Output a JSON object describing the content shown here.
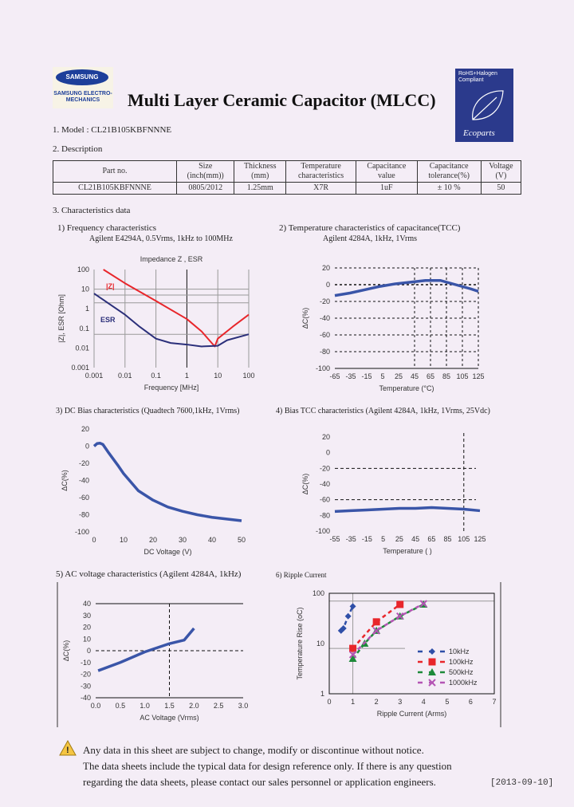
{
  "header": {
    "logo_text": "SAMSUNG",
    "logo_sub": "SAMSUNG ELECTRO-MECHANICS",
    "title": "Multi Layer Ceramic Capacitor (MLCC)",
    "badge_text": "RoHS+Halogen Compliant",
    "badge_brand": "Ecoparts"
  },
  "model": "1. Model : CL21B105KBFNNNE",
  "description_heading": "2. Description",
  "table": {
    "headers": [
      [
        "Part no.",
        ""
      ],
      [
        "Size",
        "(inch(mm))"
      ],
      [
        "Thickness",
        "(mm)"
      ],
      [
        "Temperature",
        "characteristics"
      ],
      [
        "Capacitance",
        "value"
      ],
      [
        "Capacitance",
        "tolerance(%)"
      ],
      [
        "Voltage",
        "(V)"
      ]
    ],
    "row": [
      "CL21B105KBFNNNE",
      "0805/2012",
      "1.25mm",
      "X7R",
      "1uF",
      "± 10 %",
      "50"
    ]
  },
  "characteristics_heading": "3. Characteristics data",
  "chart_data": [
    {
      "id": "c1",
      "type": "line",
      "heading": "1) Frequency characteristics",
      "subheading": "Agilent E4294A, 0.5Vrms, 1kHz to 100MHz",
      "title": "Impedance  Z , ESR",
      "xlabel": "Frequency [MHz]",
      "ylabel": "|Z|, ESR [Ohm]",
      "xscale": "log",
      "yscale": "log",
      "xlim": [
        0.001,
        100
      ],
      "ylim": [
        0.001,
        100
      ],
      "xticks": [
        "0.001",
        "0.01",
        "0.1",
        "1",
        "10",
        "100"
      ],
      "yticks": [
        "0.001",
        "0.01",
        "0.1",
        "1",
        "10",
        "100"
      ],
      "grid": true,
      "series": [
        {
          "name": "|Z|",
          "color": "#e8262b",
          "x": [
            0.002,
            0.01,
            0.1,
            1,
            3,
            6,
            8,
            10,
            30,
            100
          ],
          "y": [
            100,
            20,
            2.5,
            0.3,
            0.07,
            0.02,
            0.012,
            0.03,
            0.12,
            0.5
          ]
        },
        {
          "name": "ESR",
          "color": "#2b2f7a",
          "x": [
            0.001,
            0.01,
            0.03,
            0.1,
            0.3,
            1,
            3,
            10,
            20,
            100
          ],
          "y": [
            6,
            0.5,
            0.12,
            0.03,
            0.018,
            0.015,
            0.012,
            0.013,
            0.025,
            0.05
          ]
        }
      ]
    },
    {
      "id": "c2",
      "type": "line",
      "heading": "2) Temperature characteristics of capacitance(TCC)",
      "subheading": "Agilent 4284A, 1kHz, 1Vrms",
      "xlabel": "Temperature (°C)",
      "ylabel": "ΔC(%)",
      "xlim": [
        -65,
        125
      ],
      "ylim": [
        -100,
        20
      ],
      "xticks": [
        "-65",
        "-35",
        "-15",
        "5",
        "25",
        "45",
        "65",
        "85",
        "105",
        "125"
      ],
      "yticks": [
        "-100",
        "-80",
        "-60",
        "-40",
        "-20",
        "0",
        "20"
      ],
      "series": [
        {
          "color": "#3a55a8",
          "x": [
            -65,
            -45,
            -25,
            -5,
            15,
            35,
            55,
            75,
            95,
            115,
            125
          ],
          "y": [
            -13,
            -10,
            -6,
            -2,
            1,
            3,
            5,
            5,
            0,
            -5,
            -8
          ]
        }
      ]
    },
    {
      "id": "c3",
      "type": "line",
      "heading": "3) DC Bias characteristics (Quadtech 7600,1kHz, 1Vrms)",
      "xlabel": "DC Voltage (V)",
      "ylabel": "ΔC(%)",
      "xlim": [
        0,
        50
      ],
      "ylim": [
        -100,
        20
      ],
      "xticks": [
        "0",
        "10",
        "20",
        "30",
        "40",
        "50"
      ],
      "yticks": [
        "-100",
        "-80",
        "-60",
        "-40",
        "-20",
        "0",
        "20"
      ],
      "series": [
        {
          "color": "#3a55a8",
          "x": [
            0,
            1,
            2,
            3,
            5,
            8,
            10,
            15,
            20,
            25,
            30,
            35,
            40,
            45,
            50
          ],
          "y": [
            0,
            3,
            3.5,
            2,
            -8,
            -22,
            -32,
            -52,
            -63,
            -71,
            -76,
            -80,
            -83,
            -85,
            -87
          ]
        }
      ]
    },
    {
      "id": "c4",
      "type": "line",
      "heading": "4) Bias TCC characteristics (Agilent 4284A, 1kHz, 1Vrms, 25Vdc)",
      "xlabel": "Temperature (   )",
      "ylabel": "ΔC(%)",
      "xlim": [
        -55,
        125
      ],
      "ylim": [
        -100,
        20
      ],
      "xticks": [
        "-55",
        "-35",
        "-15",
        "5",
        "25",
        "45",
        "65",
        "85",
        "105",
        "125"
      ],
      "yticks": [
        "-100",
        "-80",
        "-60",
        "-40",
        "-20",
        "0",
        "20"
      ],
      "series": [
        {
          "color": "#3a55a8",
          "x": [
            -55,
            -35,
            -15,
            5,
            25,
            45,
            65,
            85,
            105,
            125
          ],
          "y": [
            -75,
            -74,
            -73,
            -72,
            -71,
            -71,
            -70,
            -71,
            -72,
            -74
          ]
        }
      ]
    },
    {
      "id": "c5",
      "type": "line",
      "heading": "5) AC voltage characteristics (Agilent 4284A, 1kHz)",
      "xlabel": "AC Voltage (Vrms)",
      "ylabel": "ΔC(%)",
      "xlim": [
        0,
        3
      ],
      "ylim": [
        -40,
        40
      ],
      "xticks": [
        "0.0",
        "0.5",
        "1.0",
        "1.5",
        "2.0",
        "2.5",
        "3.0"
      ],
      "yticks": [
        "-40",
        "-30",
        "-20",
        "-10",
        "0",
        "10",
        "20",
        "30",
        "40"
      ],
      "series": [
        {
          "color": "#3a55a8",
          "x": [
            0.05,
            0.5,
            1,
            1.5,
            1.8,
            2.0
          ],
          "y": [
            -17,
            -10,
            -1,
            6,
            9,
            19
          ]
        }
      ]
    },
    {
      "id": "c6",
      "type": "scatter",
      "heading": "6) Ripple Current",
      "xlabel": "Ripple Current (Arms)",
      "ylabel": "Temperature Rise (oC)",
      "xlim": [
        0,
        7
      ],
      "ylim": [
        1,
        100
      ],
      "yscale": "log",
      "xticks": [
        "0",
        "1",
        "2",
        "3",
        "4",
        "5",
        "6",
        "7"
      ],
      "yticks": [
        "1",
        "10",
        "100"
      ],
      "legend": "right",
      "series": [
        {
          "name": "10kHz",
          "color": "#2f4fa8",
          "marker": "diamond",
          "x": [
            0.5,
            0.6,
            0.8,
            1
          ],
          "y": [
            18,
            20,
            35,
            55
          ]
        },
        {
          "name": "100kHz",
          "color": "#e8262b",
          "marker": "square",
          "x": [
            1,
            2,
            3
          ],
          "y": [
            8,
            27,
            60
          ]
        },
        {
          "name": "500kHz",
          "color": "#1e8a3a",
          "marker": "triangle",
          "x": [
            1,
            1.5,
            2,
            3,
            4
          ],
          "y": [
            5,
            10,
            18,
            35,
            60
          ]
        },
        {
          "name": "1000kHz",
          "color": "#b455b4",
          "marker": "x",
          "x": [
            1,
            2,
            3,
            4
          ],
          "y": [
            6,
            18,
            35,
            62
          ]
        }
      ]
    }
  ],
  "notice": [
    "Any data in this sheet are subject to change, modify or discontinue without notice.",
    "The data sheets include the typical data for design reference only. If there is any question",
    "regarding the data sheets, please contact our sales personnel or application engineers."
  ],
  "date": "[2013-09-10]"
}
